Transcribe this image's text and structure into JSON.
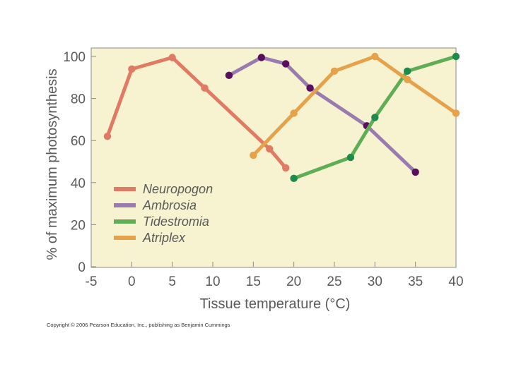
{
  "chart_data": {
    "type": "line",
    "title": "",
    "xlabel": "Tissue temperature (°C)",
    "ylabel": "% of maximum photosynthesis",
    "xlim": [
      -5,
      40
    ],
    "ylim": [
      0,
      100
    ],
    "xticks": [
      "-5",
      "0",
      "5",
      "10",
      "15",
      "20",
      "25",
      "30",
      "35",
      "40"
    ],
    "yticks": [
      "0",
      "20",
      "40",
      "60",
      "80",
      "100"
    ],
    "grid": false,
    "legend_position": "left-center",
    "series": [
      {
        "name": "Neuropogon",
        "line_color": "#e07a62",
        "marker_color": "#e07a62",
        "x": [
          -3,
          0,
          5,
          9,
          17,
          19
        ],
        "y": [
          62,
          94,
          99.5,
          85,
          56,
          47
        ]
      },
      {
        "name": "Ambrosia",
        "line_color": "#9a7bb0",
        "marker_color": "#5a0f5e",
        "x": [
          12,
          16,
          19,
          22,
          29,
          35
        ],
        "y": [
          91,
          99.5,
          96.5,
          85,
          67,
          45
        ]
      },
      {
        "name": "Tidestromia",
        "line_color": "#5fae55",
        "marker_color": "#1e8a4c",
        "x": [
          20,
          27,
          30,
          34,
          40
        ],
        "y": [
          42,
          52,
          71,
          93,
          100
        ]
      },
      {
        "name": "Atriplex",
        "line_color": "#e6a24a",
        "marker_color": "#e6a24a",
        "x": [
          15,
          20,
          25,
          30,
          34,
          40
        ],
        "y": [
          53,
          73,
          93,
          100,
          89,
          73
        ]
      }
    ]
  },
  "footer": {
    "copyright": "Copyright © 2006 Pearson Education, Inc., publishing as Benjamin Cummings"
  }
}
